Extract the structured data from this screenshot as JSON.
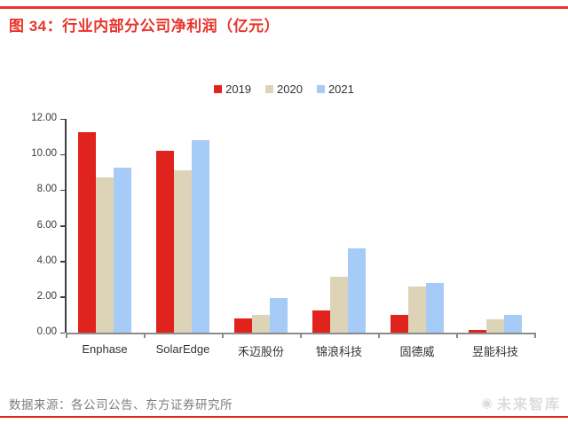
{
  "header": {
    "title": "图 34：行业内部分公司净利润（亿元）"
  },
  "chart_data": {
    "type": "bar",
    "title": "行业内部分公司净利润（亿元）",
    "categories": [
      "Enphase",
      "SolarEdge",
      "禾迈股份",
      "锦浪科技",
      "固德威",
      "昱能科技"
    ],
    "series": [
      {
        "name": "2019",
        "color": "#e0231c",
        "values": [
          11.25,
          10.2,
          0.8,
          1.25,
          1.0,
          0.15
        ]
      },
      {
        "name": "2020",
        "color": "#ddd3b7",
        "values": [
          8.7,
          9.1,
          1.0,
          3.15,
          2.6,
          0.75
        ]
      },
      {
        "name": "2021",
        "color": "#a6cbf6",
        "values": [
          9.25,
          10.8,
          1.95,
          4.75,
          2.8,
          1.0
        ]
      }
    ],
    "ylim": [
      0,
      12
    ],
    "ytick_labels": [
      "0.00",
      "2.00",
      "4.00",
      "6.00",
      "8.00",
      "10.00",
      "12.00"
    ],
    "xlabel": "",
    "ylabel": "",
    "grid": false,
    "legend_position": "top-center"
  },
  "footer": {
    "source": "数据来源：各公司公告、东方证券研究所",
    "watermark": "未来智库"
  },
  "colors": {
    "accent_red": "#e8342b",
    "bar_red": "#e0231c",
    "bar_tan": "#ddd3b7",
    "bar_blue": "#a6cbf6",
    "axis_dark": "#3f3f3f",
    "baseline_gray": "#8c8c8c",
    "source_gray": "#7f7f7f",
    "watermark_gray": "#dcdcdc"
  }
}
